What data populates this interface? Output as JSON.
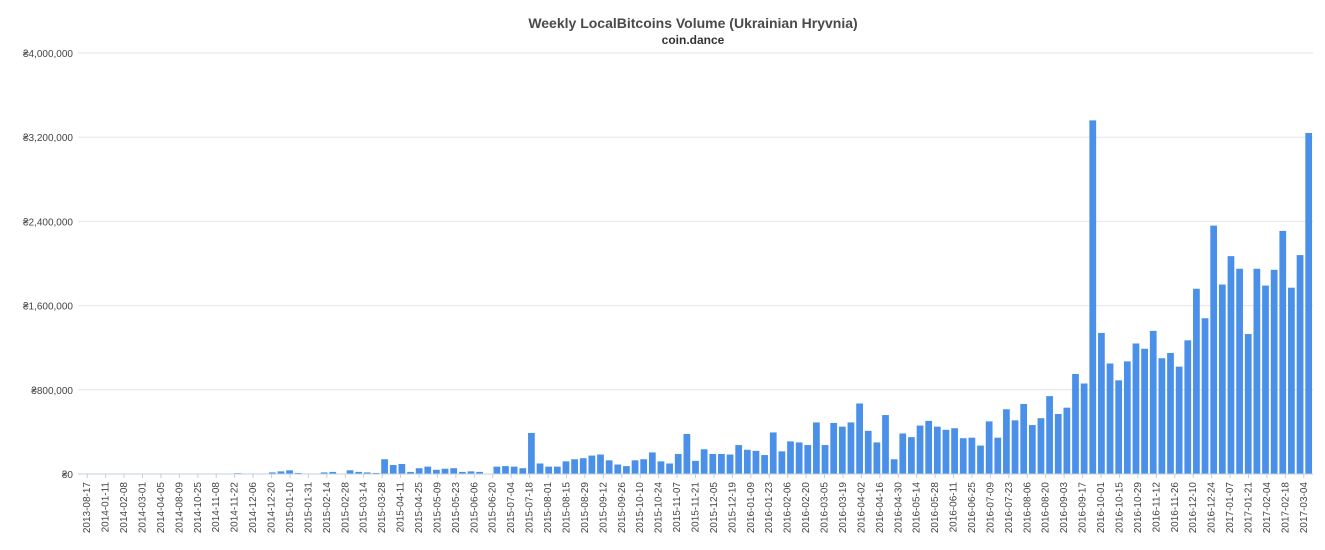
{
  "chart_data": {
    "type": "bar",
    "title": "Weekly LocalBitcoins Volume (Ukrainian Hryvnia)",
    "subtitle": "coin.dance",
    "ylim": [
      0,
      4000000
    ],
    "yticks": [
      "₴0",
      "₴800,000",
      "₴1,600,000",
      "₴2,400,000",
      "₴3,200,000",
      "₴4,000,000"
    ],
    "ytick_values": [
      0,
      800000,
      1600000,
      2400000,
      3200000,
      4000000
    ],
    "grid": true,
    "legend": "none",
    "bar_color": "#4a90e8",
    "x_labels": [
      "2013-08-17",
      "2014-01-11",
      "2014-02-08",
      "2014-03-01",
      "2014-04-05",
      "2014-08-09",
      "2014-10-25",
      "2014-11-08",
      "2014-11-22",
      "2014-12-06",
      "2014-12-20",
      "2015-01-10",
      "2015-01-31",
      "2015-02-14",
      "2015-02-28",
      "2015-03-14",
      "2015-03-28",
      "2015-04-11",
      "2015-04-25",
      "2015-05-09",
      "2015-05-23",
      "2015-06-06",
      "2015-06-20",
      "2015-07-04",
      "2015-07-18",
      "2015-08-01",
      "2015-08-15",
      "2015-08-29",
      "2015-09-12",
      "2015-09-26",
      "2015-10-10",
      "2015-10-24",
      "2015-11-07",
      "2015-11-21",
      "2015-12-05",
      "2015-12-19",
      "2016-01-09",
      "2016-01-23",
      "2016-02-06",
      "2016-02-20",
      "2016-03-05",
      "2016-03-19",
      "2016-04-02",
      "2016-04-16",
      "2016-04-30",
      "2016-05-14",
      "2016-05-28",
      "2016-06-11",
      "2016-06-25",
      "2016-07-09",
      "2016-07-23",
      "2016-08-06",
      "2016-08-20",
      "2016-09-03",
      "2016-09-17",
      "2016-10-01",
      "2016-10-15",
      "2016-10-29",
      "2016-11-12",
      "2016-11-26",
      "2016-12-10",
      "2016-12-24",
      "2017-01-07",
      "2017-01-21",
      "2017-02-04",
      "2017-02-18",
      "2017-03-04"
    ],
    "values": [
      0,
      0,
      0,
      0,
      0,
      0,
      0,
      0,
      0,
      0,
      0,
      0,
      3000,
      2000,
      0,
      0,
      0,
      0,
      8000,
      0,
      5000,
      0,
      15000,
      25000,
      35000,
      10000,
      0,
      0,
      15000,
      20000,
      0,
      35000,
      20000,
      15000,
      10000,
      140000,
      85000,
      95000,
      20000,
      55000,
      70000,
      40000,
      50000,
      55000,
      20000,
      25000,
      20000,
      0,
      70000,
      75000,
      70000,
      55000,
      390000,
      100000,
      70000,
      70000,
      120000,
      140000,
      150000,
      175000,
      185000,
      130000,
      90000,
      75000,
      130000,
      140000,
      205000,
      120000,
      100000,
      190000,
      380000,
      125000,
      235000,
      190000,
      190000,
      185000,
      275000,
      230000,
      220000,
      180000,
      395000,
      215000,
      310000,
      300000,
      275000,
      490000,
      275000,
      485000,
      450000,
      490000,
      670000,
      410000,
      300000,
      560000,
      140000,
      385000,
      350000,
      460000,
      505000,
      450000,
      420000,
      435000,
      340000,
      345000,
      270000,
      500000,
      345000,
      615000,
      510000,
      665000,
      465000,
      530000,
      740000,
      570000,
      630000,
      950000,
      860000,
      3360000,
      1340000,
      1050000,
      890000,
      1070000,
      1240000,
      1190000,
      1360000,
      1100000,
      1150000,
      1020000,
      1270000,
      1760000,
      1480000,
      2360000,
      1800000,
      2070000,
      1950000,
      1330000,
      1950000,
      1790000,
      1940000,
      2310000,
      1770000,
      2080000,
      3240000
    ]
  }
}
